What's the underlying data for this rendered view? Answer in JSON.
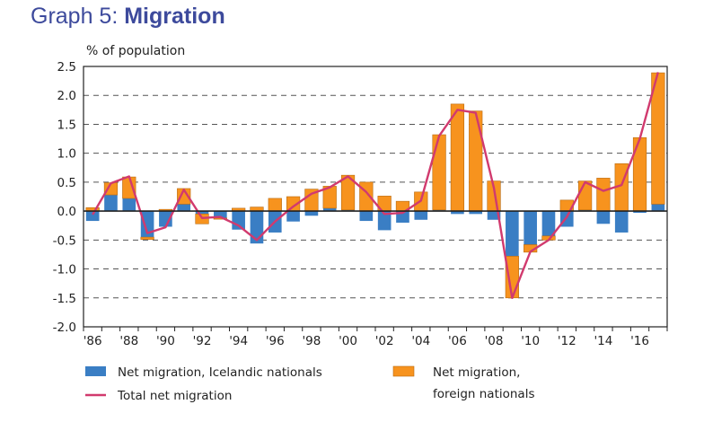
{
  "page": {
    "title_prefix": "Graph 5: ",
    "title_bold": "Migration"
  },
  "chart_data": {
    "type": "bar",
    "title": "Graph 5: Migration",
    "ylabel": "% of population",
    "ylim": [
      -2.0,
      2.5
    ],
    "y_ticks": [
      "2.5",
      "2.0",
      "1.5",
      "1.0",
      "0.5",
      "0.0",
      "-0.5",
      "-1.0",
      "-1.5",
      "-2.0"
    ],
    "x_tick_labels": [
      "'86",
      "'88",
      "'90",
      "'92",
      "'94",
      "'96",
      "'98",
      "'00",
      "'02",
      "'04",
      "'06",
      "'08",
      "'10",
      "'12",
      "'14",
      "'16"
    ],
    "years": [
      1986,
      1987,
      1988,
      1989,
      1990,
      1991,
      1992,
      1993,
      1994,
      1995,
      1996,
      1997,
      1998,
      1999,
      2000,
      2001,
      2002,
      2003,
      2004,
      2005,
      2006,
      2007,
      2008,
      2009,
      2010,
      2011,
      2012,
      2013,
      2014,
      2015,
      2016,
      2017
    ],
    "grid": "horizontal dashed",
    "legend_position": "bottom",
    "series": [
      {
        "name": "Net migration, Icelandic nationals",
        "type": "bar",
        "color": "#3a7ec4",
        "values": [
          -0.17,
          0.28,
          0.22,
          -0.45,
          -0.27,
          0.12,
          -0.05,
          -0.12,
          -0.32,
          -0.56,
          -0.37,
          -0.18,
          -0.08,
          0.05,
          0.02,
          -0.17,
          -0.33,
          -0.2,
          -0.15,
          0.02,
          -0.05,
          -0.05,
          -0.15,
          -0.78,
          -0.58,
          -0.43,
          -0.27,
          0.02,
          -0.22,
          -0.37,
          -0.03,
          0.12
        ]
      },
      {
        "name": "Net migration, foreign nationals",
        "type": "bar",
        "color": "#f7931e",
        "values": [
          0.06,
          0.21,
          0.37,
          -0.04,
          0.03,
          0.27,
          -0.17,
          -0.02,
          0.05,
          0.07,
          0.22,
          0.25,
          0.38,
          0.38,
          0.6,
          0.5,
          0.26,
          0.17,
          0.33,
          1.3,
          1.85,
          1.73,
          0.52,
          -0.72,
          -0.13,
          -0.07,
          0.19,
          0.5,
          0.57,
          0.82,
          1.27,
          2.27
        ]
      },
      {
        "name": "Total net migration",
        "type": "line",
        "color": "#d13a6e",
        "values": [
          -0.06,
          0.48,
          0.6,
          -0.38,
          -0.28,
          0.37,
          -0.12,
          -0.1,
          -0.25,
          -0.5,
          -0.18,
          0.08,
          0.3,
          0.41,
          0.6,
          0.33,
          -0.05,
          -0.03,
          0.18,
          1.3,
          1.75,
          1.7,
          0.4,
          -1.5,
          -0.7,
          -0.5,
          -0.1,
          0.5,
          0.35,
          0.45,
          1.25,
          2.4
        ]
      }
    ],
    "legend": [
      {
        "label": "Net migration, Icelandic nationals",
        "kind": "box",
        "color": "#3a7ec4"
      },
      {
        "label": "Net migration,",
        "label2": "foreign nationals",
        "kind": "box",
        "color": "#f7931e"
      },
      {
        "label": "Total net migration",
        "kind": "line",
        "color": "#d13a6e"
      }
    ]
  }
}
